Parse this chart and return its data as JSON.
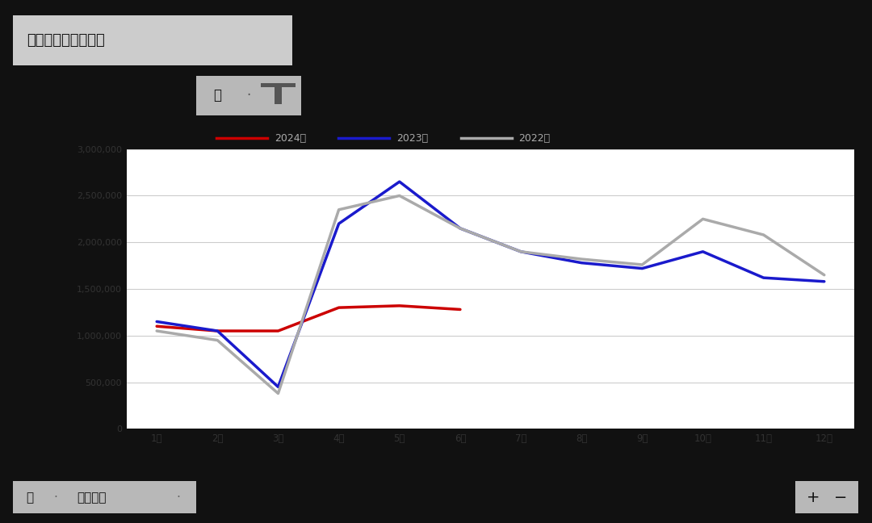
{
  "title": "建筑用钢成交量合计",
  "background_color": "#111111",
  "title_box_color": "#cccccc",
  "plot_background_color": "#ffffff",
  "ylim": [
    0,
    3000000
  ],
  "yticks": [
    0,
    500000,
    1000000,
    1500000,
    2000000,
    2500000,
    3000000
  ],
  "ytick_labels": [
    "0",
    "500,000",
    "1,000,000",
    "1,500,000",
    "2,000,000",
    "2,500,000",
    "3,000,000"
  ],
  "month_labels": [
    "1月",
    "2月",
    "3月",
    "4月",
    "5月",
    "6月",
    "7月",
    "8月",
    "9月",
    "10月",
    "11月",
    "12月"
  ],
  "series": [
    {
      "name": "2024年",
      "color": "#cc0000",
      "lw": 2.5,
      "x": [
        0,
        1,
        2,
        3,
        4,
        5
      ],
      "y": [
        1100000,
        1050000,
        1050000,
        1300000,
        1320000,
        1280000
      ]
    },
    {
      "name": "2023年",
      "color": "#1a1acc",
      "lw": 2.5,
      "x": [
        0,
        1,
        2,
        3,
        4,
        5,
        6,
        7,
        8,
        9,
        10,
        11
      ],
      "y": [
        1150000,
        1050000,
        450000,
        2200000,
        2650000,
        2150000,
        1900000,
        1780000,
        1720000,
        1900000,
        1620000,
        1580000
      ]
    },
    {
      "name": "2022年",
      "color": "#aaaaaa",
      "lw": 2.5,
      "x": [
        0,
        1,
        2,
        3,
        4,
        5,
        6,
        7,
        8,
        9,
        10,
        11
      ],
      "y": [
        1050000,
        950000,
        380000,
        2350000,
        2500000,
        2150000,
        1900000,
        1820000,
        1760000,
        2250000,
        2080000,
        1650000
      ]
    }
  ],
  "legend_box_bg": "#b0b0b0",
  "legend_filter_text": "年",
  "bottom_bar_bg": "#b0b0b0",
  "bottom_text1": "月",
  "bottom_text2": "指标名称",
  "pm_box_bg": "#b0b0b0",
  "grid_color": "#cccccc",
  "tick_color": "#555555",
  "axis_label_color": "#333333"
}
